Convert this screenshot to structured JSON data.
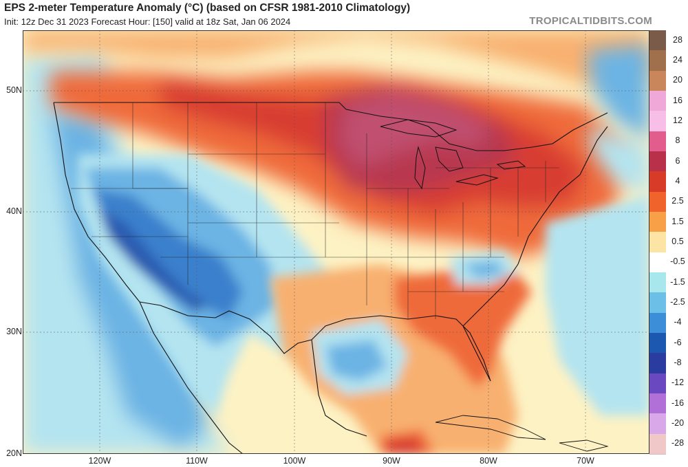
{
  "header": {
    "title": "EPS 2-meter Temperature Anomaly (°C) (based on CFSR 1981-2010 Climatology)",
    "subtitle": "Init: 12z Dec 31 2023   Forecast Hour: [150]   valid at 18z Sat, Jan 06 2024",
    "brand": "TROPICALTIDBITS.COM"
  },
  "axes": {
    "lat_labels": [
      "50N",
      "40N",
      "30N",
      "20N"
    ],
    "lon_labels": [
      "120W",
      "110W",
      "100W",
      "90W",
      "80W",
      "70W"
    ]
  },
  "colorbar": {
    "levels": [
      {
        "label": "28",
        "color": "#7a5a48"
      },
      {
        "label": "24",
        "color": "#a0704c"
      },
      {
        "label": "20",
        "color": "#c8865a"
      },
      {
        "label": "16",
        "color": "#f0a8d8"
      },
      {
        "label": "12",
        "color": "#f7bfe8"
      },
      {
        "label": "8",
        "color": "#e25c8c"
      },
      {
        "label": "6",
        "color": "#b8304a"
      },
      {
        "label": "4",
        "color": "#d83c28"
      },
      {
        "label": "2.5",
        "color": "#f0642c"
      },
      {
        "label": "1.5",
        "color": "#f8a048"
      },
      {
        "label": "0.5",
        "color": "#fce4a4"
      },
      {
        "label": "-0.5",
        "color": "#ffffff"
      },
      {
        "label": "-1.5",
        "color": "#a8e8ec"
      },
      {
        "label": "-2.5",
        "color": "#6cc0e8"
      },
      {
        "label": "-4",
        "color": "#3c8ed8"
      },
      {
        "label": "-6",
        "color": "#1c58b0"
      },
      {
        "label": "-8",
        "color": "#2a3ca0"
      },
      {
        "label": "-12",
        "color": "#6a48c0"
      },
      {
        "label": "-16",
        "color": "#b070d8"
      },
      {
        "label": "-20",
        "color": "#d8a8e8"
      },
      {
        "label": "-28",
        "color": "#f0c8c8"
      }
    ]
  },
  "palette": {
    "ocean": "#fdf2c4",
    "warm_light": "#f8b070",
    "warm": "#ef6a3a",
    "hot": "#d83c30",
    "very_hot": "#b83850",
    "peak": "#c05070",
    "cool_light": "#b4e4f0",
    "cool": "#6cb4e4",
    "cold": "#3a80cc",
    "colder": "#2a5cb0",
    "neutral": "#fbe7b0"
  }
}
